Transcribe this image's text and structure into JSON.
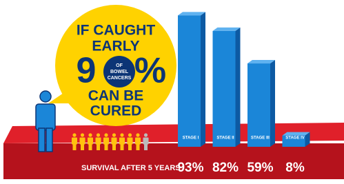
{
  "chart_data": {
    "type": "bar",
    "callout": {
      "line1": "IF CAUGHT",
      "line2": "EARLY",
      "digit": "9",
      "ring_text": [
        "OF",
        "BOWEL",
        "CANCERS"
      ],
      "percent_sign": "%",
      "line3": "CAN BE",
      "line4": "CURED"
    },
    "people": {
      "total": 10,
      "highlighted": 9
    },
    "x_label": "SURVIVAL AFTER 5 YEARS",
    "categories": [
      "STAGE I",
      "STAGE II",
      "STAGE III",
      "STAGE IV"
    ],
    "values": [
      93,
      82,
      59,
      8
    ],
    "value_labels": [
      "93%",
      "82%",
      "59%",
      "8%"
    ],
    "color": "#1b86d8"
  }
}
